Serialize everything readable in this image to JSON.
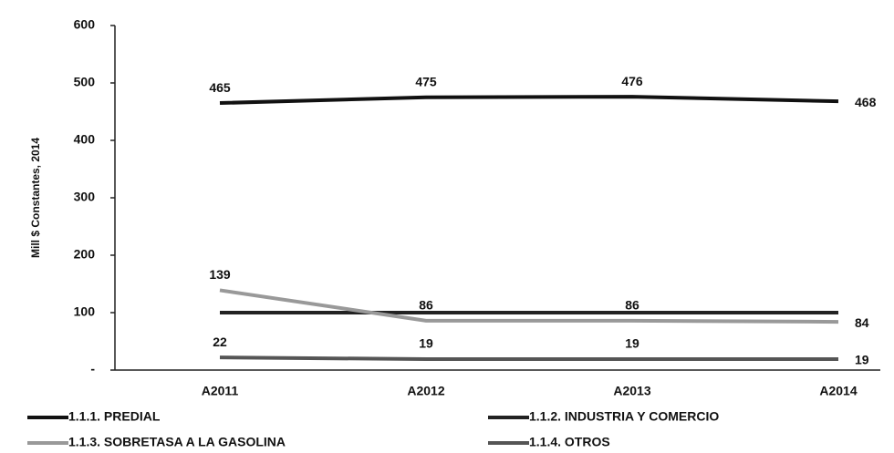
{
  "chart_data": {
    "type": "line",
    "y_label": "Mill $ Constantes, 2014",
    "categories": [
      "A2011",
      "A2012",
      "A2013",
      "A2014"
    ],
    "series": [
      {
        "name": "1.1.1. PREDIAL",
        "color": "#111111",
        "values": [
          465,
          475,
          476,
          468
        ],
        "data_labels": true
      },
      {
        "name": "1.1.2. INDUSTRIA Y COMERCIO",
        "color": "#222222",
        "values": [
          100,
          100,
          100,
          100
        ],
        "data_labels": false
      },
      {
        "name": "1.1.3. SOBRETASA A LA GASOLINA",
        "color": "#999999",
        "values": [
          139,
          86,
          86,
          84
        ],
        "data_labels": true
      },
      {
        "name": "1.1.4. OTROS",
        "color": "#555555",
        "values": [
          22,
          19,
          19,
          19
        ],
        "data_labels": true
      }
    ],
    "ylim": [
      0,
      600
    ],
    "yticks": [
      {
        "value": 0,
        "label": "-"
      },
      100,
      200,
      300,
      400,
      500,
      600
    ]
  }
}
